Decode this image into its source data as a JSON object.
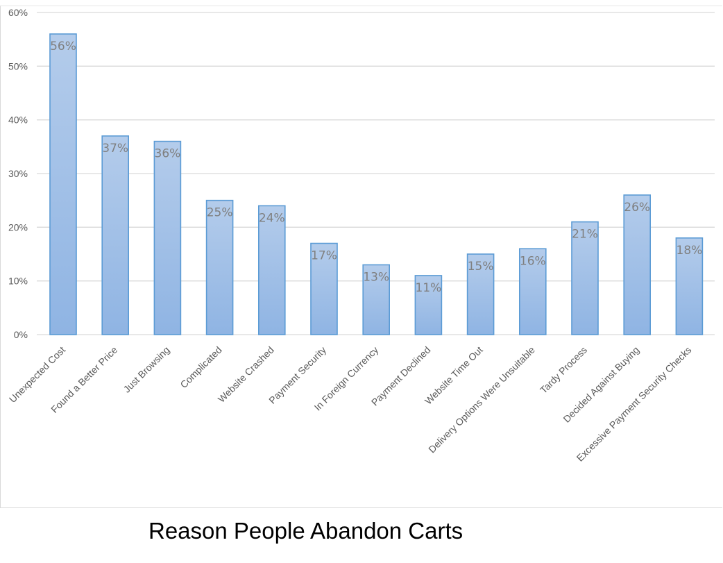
{
  "chart_data": {
    "type": "bar",
    "title": "Reason People Abandon Carts",
    "xlabel": "",
    "ylabel": "",
    "categories": [
      "Unexpected Cost",
      "Found a Better Price",
      "Just Browsing",
      "Complicated",
      "Website Crashed",
      "Payment Security",
      "In Foreign Currency",
      "Payment Declined",
      "Website Time Out",
      "Delivery Options Were Unsuitable",
      "Tardy Process",
      "Decided Against Buying",
      "Excessive Payment Security Checks"
    ],
    "values": [
      56,
      37,
      36,
      25,
      24,
      17,
      13,
      11,
      15,
      16,
      21,
      26,
      18
    ],
    "data_labels": [
      "56%",
      "37%",
      "36%",
      "25%",
      "24%",
      "17%",
      "13%",
      "11%",
      "15%",
      "16%",
      "21%",
      "26%",
      "18%"
    ],
    "yticks": [
      0,
      10,
      20,
      30,
      40,
      50,
      60
    ],
    "ytick_labels": [
      "0%",
      "10%",
      "20%",
      "30%",
      "40%",
      "50%",
      "60%"
    ],
    "ylim": [
      0,
      60
    ],
    "grid": true,
    "legend": "none",
    "colors": {
      "bar_fill_top": "#b4cceb",
      "bar_fill_bottom": "#8fb4e3",
      "bar_stroke": "#5b9bd5",
      "gridline": "#d9d9d9",
      "label_text": "#7f7f7f",
      "tick_text": "#595959"
    }
  }
}
